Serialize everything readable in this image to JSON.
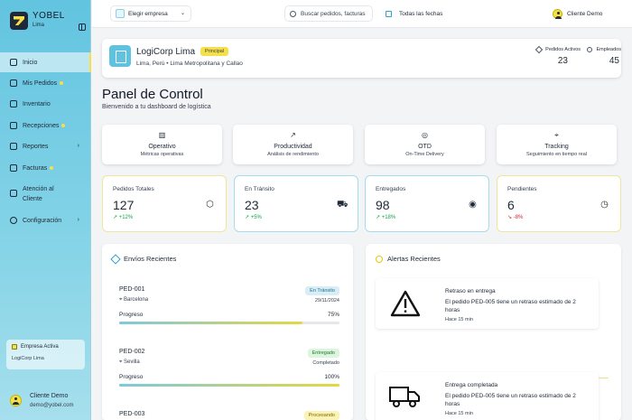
{
  "brand": {
    "name": "YOBEL",
    "sub": "Lima"
  },
  "sidebar": {
    "items": [
      {
        "label": "Inicio"
      },
      {
        "label": "Mis Pedidos"
      },
      {
        "label": "Inventario"
      },
      {
        "label": "Recepciones"
      },
      {
        "label": "Reportes"
      },
      {
        "label": "Facturas"
      },
      {
        "label": "Atención al"
      },
      {
        "label": "Configuración"
      }
    ],
    "contact_label2": "Cliente",
    "empresa_title": "Empresa Activa",
    "empresa_value": "LogiCorp Lima",
    "user_name": "Cliente Demo",
    "user_email": "demo@yobel.com"
  },
  "topbar": {
    "company_select": "Elegir empresa",
    "search_placeholder": "Buscar pedidos, facturas",
    "dates": "Todas las fechas",
    "user": "Cliente Demo"
  },
  "company": {
    "name": "LogiCorp Lima",
    "badge": "Principal",
    "location": "Lima, Perú • Lima Metropolitana y Callao",
    "stat1_label": "Pedidos Activos",
    "stat1_value": "23",
    "stat2_label": "Empleados",
    "stat2_value": "45"
  },
  "page": {
    "title": "Panel de Control",
    "subtitle": "Bienvenido a tu dashboard de logística"
  },
  "quick": [
    {
      "title": "Operativo",
      "sub": "Métricas operativas"
    },
    {
      "title": "Productividad",
      "sub": "Análisis de rendimiento"
    },
    {
      "title": "OTD",
      "sub": "On-Time Delivery"
    },
    {
      "title": "Tracking",
      "sub": "Seguimiento en tiempo real"
    }
  ],
  "kpis": [
    {
      "label": "Pedidos Totales",
      "value": "127",
      "change": "+12%"
    },
    {
      "label": "En Tránsito",
      "value": "23",
      "change": "+5%"
    },
    {
      "label": "Entregados",
      "value": "98",
      "change": "+18%"
    },
    {
      "label": "Pendientes",
      "value": "6",
      "change": "-8%"
    }
  ],
  "shipments": {
    "title": "Envíos Recientes",
    "progress_label": "Progreso",
    "items": [
      {
        "id": "PED-001",
        "city": "Barcelona",
        "status": "En Tránsito",
        "date": "29/11/2024",
        "progress": "75%"
      },
      {
        "id": "PED-002",
        "city": "Sevilla",
        "status": "Entregado",
        "date": "Completado",
        "progress": "100%"
      },
      {
        "id": "PED-003",
        "status": "Procesando"
      }
    ]
  },
  "alerts": {
    "title": "Alertas Recientes",
    "items": [
      {
        "title": "Retraso en entrega",
        "msg": "El pedido PED-005 tiene un retraso estimado de 2 horas",
        "time": "Hace 15 min"
      },
      {
        "title": "Entrega completada",
        "msg": "El pedido PED-005 tiene un retraso estimado de 2 horas",
        "time": "Hace 15 min"
      }
    ]
  },
  "colors": {
    "accent": "#f5e04a",
    "sidebar": "#62c4e0",
    "positive": "#16a34a",
    "negative": "#dc2626"
  }
}
